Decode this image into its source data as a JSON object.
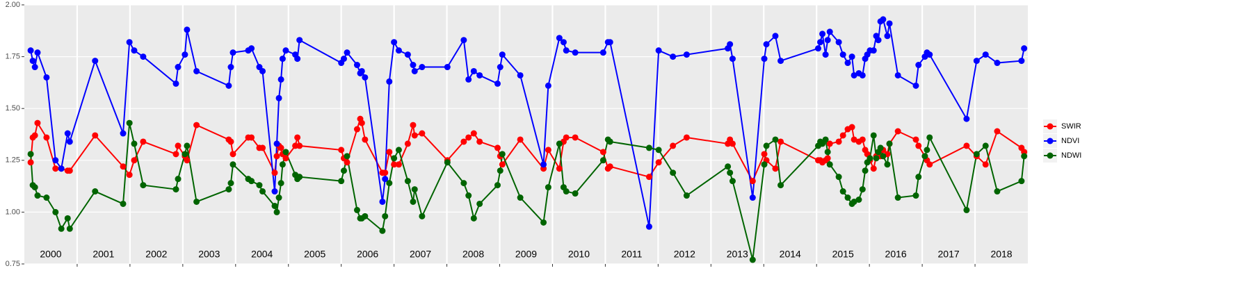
{
  "chart_data": {
    "type": "line",
    "x": [
      2000.12,
      2000.16,
      2000.2,
      2000.25,
      2000.42,
      2000.59,
      2000.7,
      2000.82,
      2000.86,
      2001.34,
      2001.87,
      2001.99,
      2002.08,
      2002.25,
      2002.87,
      2002.91,
      2003.04,
      2003.08,
      2003.26,
      2003.87,
      2003.91,
      2003.95,
      2004.24,
      2004.3,
      2004.45,
      2004.51,
      2004.74,
      2004.78,
      2004.82,
      2004.86,
      2004.89,
      2004.95,
      2005.13,
      2005.17,
      2005.21,
      2006.0,
      2006.05,
      2006.11,
      2006.3,
      2006.36,
      2006.39,
      2006.45,
      2006.78,
      2006.83,
      2006.91,
      2007.0,
      2007.09,
      2007.26,
      2007.36,
      2007.39,
      2007.53,
      2008.01,
      2008.32,
      2008.41,
      2008.51,
      2008.62,
      2008.96,
      2009.01,
      2009.05,
      2009.39,
      2009.83,
      2009.92,
      2010.13,
      2010.21,
      2010.26,
      2010.43,
      2010.96,
      2011.05,
      2011.09,
      2011.83,
      2012.01,
      2012.28,
      2012.54,
      2013.32,
      2013.36,
      2013.41,
      2013.79,
      2014.01,
      2014.05,
      2014.22,
      2014.32,
      2015.03,
      2015.07,
      2015.11,
      2015.17,
      2015.21,
      2015.25,
      2015.42,
      2015.5,
      2015.59,
      2015.67,
      2015.71,
      2015.8,
      2015.87,
      2015.92,
      2015.96,
      2016.01,
      2016.08,
      2016.13,
      2016.17,
      2016.21,
      2016.26,
      2016.34,
      2016.38,
      2016.54,
      2016.88,
      2016.93,
      2017.05,
      2017.09,
      2017.14,
      2017.84,
      2018.03,
      2018.2,
      2018.42,
      2018.88,
      2018.93
    ],
    "series": [
      {
        "name": "SWIR",
        "color": "#ff0000",
        "values": [
          1.24,
          1.36,
          1.37,
          1.43,
          1.36,
          1.21,
          1.21,
          1.2,
          1.2,
          1.37,
          1.22,
          1.18,
          1.25,
          1.34,
          1.28,
          1.32,
          1.27,
          1.25,
          1.42,
          1.35,
          1.34,
          1.28,
          1.36,
          1.36,
          1.31,
          1.31,
          1.19,
          1.27,
          1.32,
          1.31,
          1.28,
          1.26,
          1.32,
          1.36,
          1.32,
          1.3,
          1.26,
          1.24,
          1.4,
          1.45,
          1.43,
          1.35,
          1.19,
          1.19,
          1.29,
          1.23,
          1.23,
          1.33,
          1.42,
          1.37,
          1.38,
          1.25,
          1.34,
          1.36,
          1.38,
          1.34,
          1.31,
          1.27,
          1.23,
          1.35,
          1.21,
          1.3,
          1.21,
          1.34,
          1.36,
          1.36,
          1.29,
          1.21,
          1.22,
          1.17,
          1.24,
          1.32,
          1.36,
          1.33,
          1.35,
          1.33,
          1.15,
          1.28,
          1.25,
          1.21,
          1.34,
          1.25,
          1.25,
          1.24,
          1.25,
          1.26,
          1.33,
          1.34,
          1.37,
          1.4,
          1.41,
          1.35,
          1.34,
          1.35,
          1.3,
          1.28,
          1.25,
          1.21,
          1.27,
          1.29,
          1.27,
          1.3,
          1.28,
          1.33,
          1.39,
          1.35,
          1.32,
          1.27,
          1.25,
          1.23,
          1.32,
          1.27,
          1.23,
          1.39,
          1.31,
          1.29
        ]
      },
      {
        "name": "NDVI",
        "color": "#0000ff",
        "values": [
          1.78,
          1.73,
          1.7,
          1.77,
          1.65,
          1.25,
          1.21,
          1.38,
          1.34,
          1.73,
          1.38,
          1.82,
          1.78,
          1.75,
          1.62,
          1.7,
          1.76,
          1.88,
          1.68,
          1.61,
          1.7,
          1.77,
          1.78,
          1.79,
          1.7,
          1.68,
          1.1,
          1.33,
          1.55,
          1.64,
          1.74,
          1.78,
          1.76,
          1.74,
          1.83,
          1.72,
          1.74,
          1.77,
          1.71,
          1.67,
          1.68,
          1.65,
          1.05,
          1.16,
          1.63,
          1.82,
          1.78,
          1.76,
          1.71,
          1.68,
          1.7,
          1.7,
          1.83,
          1.64,
          1.68,
          1.66,
          1.62,
          1.7,
          1.76,
          1.66,
          1.23,
          1.61,
          1.84,
          1.82,
          1.78,
          1.77,
          1.77,
          1.82,
          1.82,
          0.93,
          1.78,
          1.75,
          1.76,
          1.79,
          1.81,
          1.74,
          1.07,
          1.74,
          1.81,
          1.85,
          1.73,
          1.79,
          1.82,
          1.86,
          1.76,
          1.83,
          1.87,
          1.82,
          1.76,
          1.72,
          1.75,
          1.66,
          1.67,
          1.66,
          1.74,
          1.76,
          1.78,
          1.78,
          1.85,
          1.83,
          1.92,
          1.93,
          1.85,
          1.91,
          1.66,
          1.61,
          1.71,
          1.75,
          1.77,
          1.76,
          1.45,
          1.73,
          1.76,
          1.72,
          1.73,
          1.79
        ]
      },
      {
        "name": "NDWI",
        "color": "#006400",
        "values": [
          1.28,
          1.13,
          1.12,
          1.08,
          1.07,
          1.0,
          0.92,
          0.97,
          0.92,
          1.1,
          1.04,
          1.43,
          1.33,
          1.13,
          1.11,
          1.16,
          1.28,
          1.32,
          1.05,
          1.11,
          1.14,
          1.23,
          1.16,
          1.15,
          1.13,
          1.1,
          1.03,
          1.0,
          1.07,
          1.14,
          1.23,
          1.29,
          1.18,
          1.16,
          1.17,
          1.15,
          1.2,
          1.27,
          1.01,
          0.97,
          0.97,
          0.98,
          0.91,
          0.98,
          1.14,
          1.26,
          1.3,
          1.15,
          1.05,
          1.11,
          0.98,
          1.24,
          1.14,
          1.08,
          0.97,
          1.04,
          1.13,
          1.2,
          1.28,
          1.07,
          0.95,
          1.12,
          1.33,
          1.12,
          1.1,
          1.09,
          1.25,
          1.35,
          1.34,
          1.31,
          1.3,
          1.19,
          1.08,
          1.22,
          1.19,
          1.15,
          0.77,
          1.23,
          1.32,
          1.35,
          1.13,
          1.32,
          1.34,
          1.33,
          1.35,
          1.29,
          1.23,
          1.17,
          1.1,
          1.07,
          1.04,
          1.05,
          1.06,
          1.11,
          1.2,
          1.24,
          1.26,
          1.37,
          1.26,
          1.29,
          1.31,
          1.27,
          1.23,
          1.33,
          1.07,
          1.08,
          1.17,
          1.27,
          1.3,
          1.36,
          1.01,
          1.28,
          1.32,
          1.1,
          1.15,
          1.27
        ]
      }
    ],
    "xlim": [
      2000,
      2019
    ],
    "xticks": [
      {
        "value": 2000.5,
        "label": "2000"
      },
      {
        "value": 2001.5,
        "label": "2001"
      },
      {
        "value": 2002.5,
        "label": "2002"
      },
      {
        "value": 2003.5,
        "label": "2003"
      },
      {
        "value": 2004.5,
        "label": "2004"
      },
      {
        "value": 2005.5,
        "label": "2005"
      },
      {
        "value": 2006.5,
        "label": "2006"
      },
      {
        "value": 2007.5,
        "label": "2007"
      },
      {
        "value": 2008.5,
        "label": "2008"
      },
      {
        "value": 2009.5,
        "label": "2009"
      },
      {
        "value": 2010.5,
        "label": "2010"
      },
      {
        "value": 2011.5,
        "label": "2011"
      },
      {
        "value": 2012.5,
        "label": "2012"
      },
      {
        "value": 2013.5,
        "label": "2013"
      },
      {
        "value": 2014.5,
        "label": "2014"
      },
      {
        "value": 2015.5,
        "label": "2015"
      },
      {
        "value": 2016.5,
        "label": "2016"
      },
      {
        "value": 2017.5,
        "label": "2017"
      },
      {
        "value": 2018.5,
        "label": "2018"
      }
    ],
    "xgrid": [
      2001,
      2002,
      2003,
      2004,
      2005,
      2006,
      2007,
      2008,
      2009,
      2010,
      2011,
      2012,
      2013,
      2014,
      2015,
      2016,
      2017,
      2018
    ],
    "ylim": [
      0.75,
      2.0
    ],
    "yticks": [
      {
        "value": 0.75,
        "label": "0.75"
      },
      {
        "value": 1,
        "label": "1.00"
      },
      {
        "value": 1.25,
        "label": "1.25"
      },
      {
        "value": 1.5,
        "label": "1.50"
      },
      {
        "value": 1.75,
        "label": "1.75"
      },
      {
        "value": 2,
        "label": "2.00"
      }
    ],
    "grid": true,
    "legend": "right"
  }
}
